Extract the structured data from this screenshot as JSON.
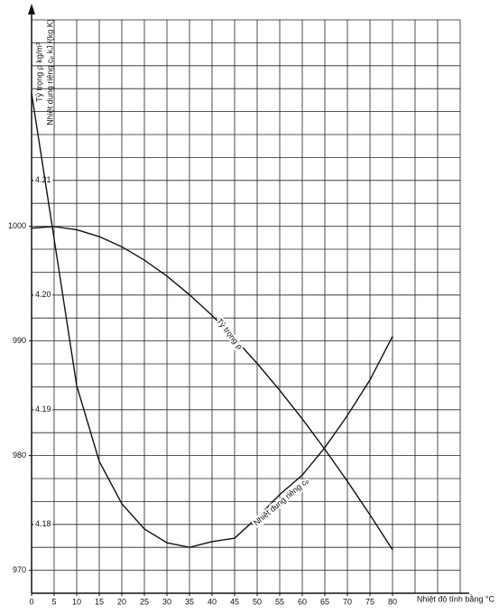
{
  "chart_data": {
    "type": "line",
    "y_label": "Tỷ trọng ρ  kg/m³",
    "y2_label": "Nhiệt dung riêng cₚ kJ /(kg K)",
    "x_label": "Nhiệt độ tính bằng °C",
    "x": [
      0,
      5,
      10,
      15,
      20,
      25,
      30,
      35,
      40,
      45,
      50,
      55,
      60,
      65,
      70,
      75,
      80
    ],
    "series": [
      {
        "name": "Tỷ trọng ρ",
        "color": "#111111",
        "axis": "y",
        "values": [
          999.84,
          999.97,
          999.7,
          999.1,
          998.21,
          997.05,
          995.65,
          994.03,
          992.22,
          990.21,
          988.04,
          985.69,
          983.2,
          980.55,
          977.76,
          974.84,
          971.79
        ]
      },
      {
        "name": "Nhiệt dung riêng cₚ",
        "color": "#111111",
        "axis": "y2",
        "values": [
          4.2176,
          4.2049,
          4.1921,
          4.1855,
          4.1818,
          4.1796,
          4.1784,
          4.178,
          4.1785,
          4.1788,
          4.1806,
          4.1826,
          4.1843,
          4.1867,
          4.1895,
          4.1926,
          4.1964
        ]
      }
    ],
    "xlim": [
      0,
      95
    ],
    "xticks": [
      0,
      5,
      10,
      15,
      20,
      25,
      30,
      35,
      40,
      45,
      50,
      55,
      60,
      65,
      70,
      75,
      80
    ],
    "ylim": [
      968,
      1018
    ],
    "yticks": [
      970,
      980,
      990,
      1000
    ],
    "y2lim": [
      4.174,
      4.224
    ],
    "y2ticks": [
      4.18,
      4.19,
      {
        "value": 4.2,
        "label": "4.20"
      },
      4.21
    ],
    "grid": true
  }
}
